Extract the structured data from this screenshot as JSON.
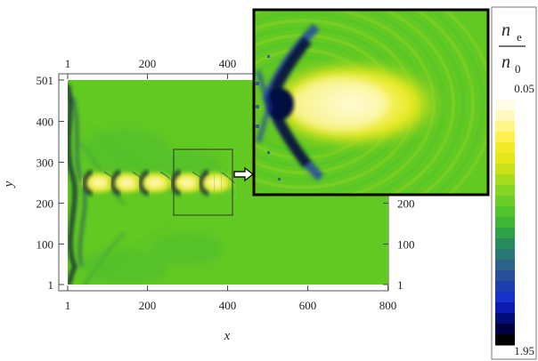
{
  "chart_data": {
    "type": "heatmap",
    "title": "",
    "xlabel": "x",
    "ylabel": "y",
    "xlim": [
      1,
      801
    ],
    "ylim": [
      1,
      501
    ],
    "x_ticks_bottom": [
      "1",
      "200",
      "400",
      "600",
      "800"
    ],
    "x_ticks_top": [
      "1",
      "200",
      "400"
    ],
    "y_ticks_left": [
      "501",
      "400",
      "300",
      "200",
      "100",
      "1"
    ],
    "y_ticks_right": [
      "200",
      "100",
      "1"
    ],
    "colorbar": {
      "label_numerator": "n",
      "label_numerator_sub": "e",
      "label_denominator": "n",
      "label_denominator_sub": "0",
      "top_value": "0.05",
      "bottom_value": "1.95",
      "colors": [
        "#fffde8",
        "#fffbc0",
        "#fff68a",
        "#fbf050",
        "#f2ec28",
        "#e4e81a",
        "#c8e21a",
        "#a6dc1e",
        "#86d424",
        "#6acd28",
        "#50c42c",
        "#3fb638",
        "#2fa248",
        "#268a5c",
        "#2a7874",
        "#2c6288",
        "#28509a",
        "#1e3eae",
        "#1630c8",
        "#0c1ab0",
        "#000e78",
        "#000040",
        "#000000"
      ]
    },
    "zoom_inset": {
      "source_region": {
        "x_range": [
          280,
          420
        ],
        "y_range": [
          170,
          335
        ]
      },
      "description_colors": {
        "background": "#62c822",
        "core": "#f6f060",
        "front": "#102060"
      }
    },
    "features": [
      {
        "kind": "bubble",
        "x_center": 70,
        "y_center": 250
      },
      {
        "kind": "bubble",
        "x_center": 140,
        "y_center": 250
      },
      {
        "kind": "bubble",
        "x_center": 210,
        "y_center": 250
      },
      {
        "kind": "bubble",
        "x_center": 290,
        "y_center": 250
      },
      {
        "kind": "bubble",
        "x_center": 360,
        "y_center": 250
      }
    ]
  }
}
